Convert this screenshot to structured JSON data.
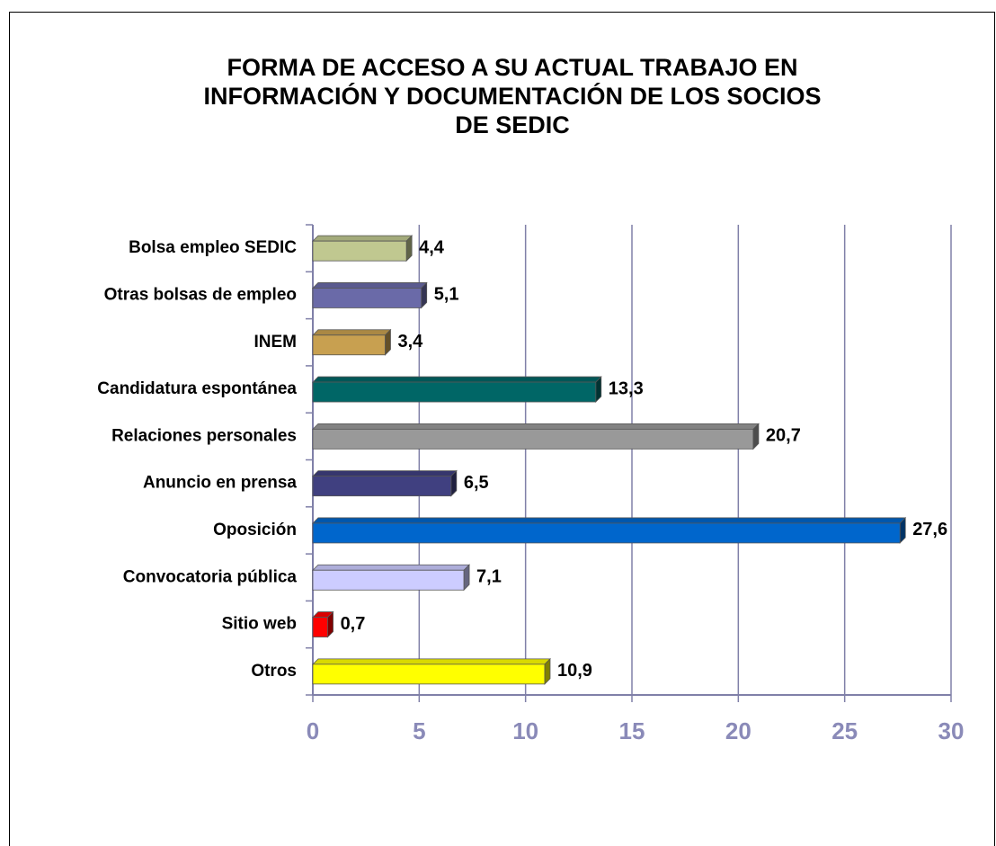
{
  "chart_data": {
    "type": "bar",
    "orientation": "horizontal",
    "title": [
      "FORMA DE ACCESO A SU ACTUAL TRABAJO EN",
      "INFORMACIÓN Y DOCUMENTACIÓN DE LOS SOCIOS",
      "DE SEDIC"
    ],
    "categories": [
      "Bolsa empleo SEDIC",
      "Otras bolsas de empleo",
      "INEM",
      "Candidatura espontánea",
      "Relaciones personales",
      "Anuncio en prensa",
      "Oposición",
      "Convocatoria pública",
      "Sitio web",
      "Otros"
    ],
    "values": [
      4.4,
      5.1,
      3.4,
      13.3,
      20.7,
      6.5,
      27.6,
      7.1,
      0.7,
      10.9
    ],
    "value_labels": [
      "4,4",
      "5,1",
      "3,4",
      "13,3",
      "20,7",
      "6,5",
      "27,6",
      "7,1",
      "0,7",
      "10,9"
    ],
    "colors": [
      "#c0c890",
      "#6a6aa8",
      "#c8a050",
      "#006666",
      "#999999",
      "#404080",
      "#0066cc",
      "#ccccff",
      "#ff0000",
      "#ffff00"
    ],
    "xlim": [
      0,
      30
    ],
    "xticks": [
      0,
      5,
      10,
      15,
      20,
      25,
      30
    ],
    "grid": true
  }
}
